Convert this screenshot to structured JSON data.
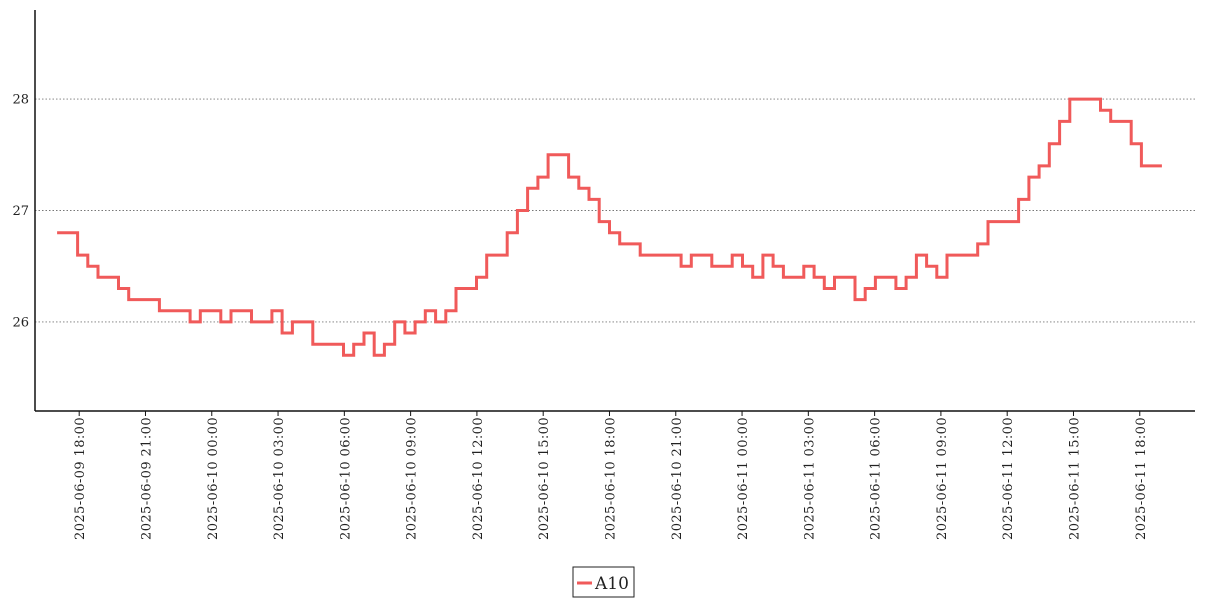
{
  "chart_data": {
    "type": "line",
    "line_style": "step",
    "title": "",
    "xlabel": "",
    "ylabel": "",
    "x_start": "2025-06-09 17:00",
    "x_end": "2025-06-11 19:00",
    "xlim": [
      "2025-06-09 16:00",
      "2025-06-11 20:30"
    ],
    "ylim": [
      25.2,
      28.8
    ],
    "y_ticks": [
      26,
      27,
      28
    ],
    "y_tick_labels": [
      "26",
      "27",
      "28"
    ],
    "x_ticks": [
      "2025-06-09 18:00",
      "2025-06-09 21:00",
      "2025-06-10 00:00",
      "2025-06-10 03:00",
      "2025-06-10 06:00",
      "2025-06-10 09:00",
      "2025-06-10 12:00",
      "2025-06-10 15:00",
      "2025-06-10 18:00",
      "2025-06-10 21:00",
      "2025-06-11 00:00",
      "2025-06-11 03:00",
      "2025-06-11 06:00",
      "2025-06-11 09:00",
      "2025-06-11 12:00",
      "2025-06-11 15:00",
      "2025-06-11 18:00"
    ],
    "x_tick_labels": [
      "2025-06-09 18:00",
      "2025-06-09 21:00",
      "2025-06-10 00:00",
      "2025-06-10 03:00",
      "2025-06-10 06:00",
      "2025-06-10 09:00",
      "2025-06-10 12:00",
      "2025-06-10 15:00",
      "2025-06-10 18:00",
      "2025-06-10 21:00",
      "2025-06-11 00:00",
      "2025-06-11 03:00",
      "2025-06-11 06:00",
      "2025-06-11 09:00",
      "2025-06-11 12:00",
      "2025-06-11 15:00",
      "2025-06-11 18:00"
    ],
    "grid": "horizontal dotted",
    "legend_position": "bottom-center",
    "series": [
      {
        "name": "A10",
        "color": "#f05a5a",
        "values": [
          26.8,
          26.8,
          26.6,
          26.5,
          26.4,
          26.4,
          26.3,
          26.2,
          26.2,
          26.2,
          26.1,
          26.1,
          26.1,
          26.0,
          26.1,
          26.1,
          26.0,
          26.1,
          26.1,
          26.0,
          26.0,
          26.1,
          25.9,
          26.0,
          26.0,
          25.8,
          25.8,
          25.8,
          25.7,
          25.8,
          25.9,
          25.7,
          25.8,
          26.0,
          25.9,
          26.0,
          26.1,
          26.0,
          26.1,
          26.3,
          26.3,
          26.4,
          26.6,
          26.6,
          26.8,
          27.0,
          27.2,
          27.3,
          27.5,
          27.5,
          27.3,
          27.2,
          27.1,
          26.9,
          26.8,
          26.7,
          26.7,
          26.6,
          26.6,
          26.6,
          26.6,
          26.5,
          26.6,
          26.6,
          26.5,
          26.5,
          26.6,
          26.5,
          26.4,
          26.6,
          26.5,
          26.4,
          26.4,
          26.5,
          26.4,
          26.3,
          26.4,
          26.4,
          26.2,
          26.3,
          26.4,
          26.4,
          26.3,
          26.4,
          26.6,
          26.5,
          26.4,
          26.6,
          26.6,
          26.6,
          26.7,
          26.9,
          26.9,
          26.9,
          27.1,
          27.3,
          27.4,
          27.6,
          27.8,
          28.0,
          28.0,
          28.0,
          27.9,
          27.8,
          27.8,
          27.6,
          27.4,
          27.4,
          27.4
        ]
      }
    ]
  }
}
